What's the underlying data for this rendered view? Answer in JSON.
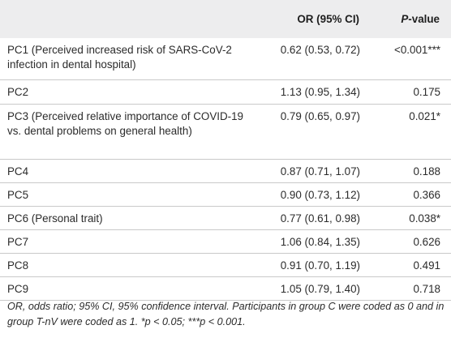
{
  "table": {
    "header": {
      "col_or": "OR (95% CI)",
      "col_p_italic": "P",
      "col_p_rest": "-value"
    },
    "rows": [
      {
        "name": "PC1 (Perceived increased risk of SARS-CoV-2 infection in dental hospital)",
        "or": "0.62 (0.53, 0.72)",
        "p": "<0.001***"
      },
      {
        "name": "PC2",
        "or": "1.13 (0.95, 1.34)",
        "p": "0.175"
      },
      {
        "name": "PC3 (Perceived relative importance of COVID-19 vs. dental problems on general health)",
        "or": "0.79 (0.65, 0.97)",
        "p": "0.021*"
      },
      {
        "name": "PC4",
        "or": "0.87 (0.71, 1.07)",
        "p": "0.188"
      },
      {
        "name": "PC5",
        "or": "0.90 (0.73, 1.12)",
        "p": "0.366"
      },
      {
        "name": "PC6 (Personal trait)",
        "or": "0.77 (0.61, 0.98)",
        "p": "0.038*"
      },
      {
        "name": "PC7",
        "or": "1.06 (0.84, 1.35)",
        "p": "0.626"
      },
      {
        "name": "PC8",
        "or": "0.91 (0.70, 1.19)",
        "p": "0.491"
      },
      {
        "name": "PC9",
        "or": "1.05 (0.79, 1.40)",
        "p": "0.718"
      }
    ]
  },
  "footnote": "OR, odds ratio; 95% CI, 95% confidence interval. Participants in group C were coded as 0 and in group T-nV were coded as 1. *p < 0.05; ***p < 0.001."
}
